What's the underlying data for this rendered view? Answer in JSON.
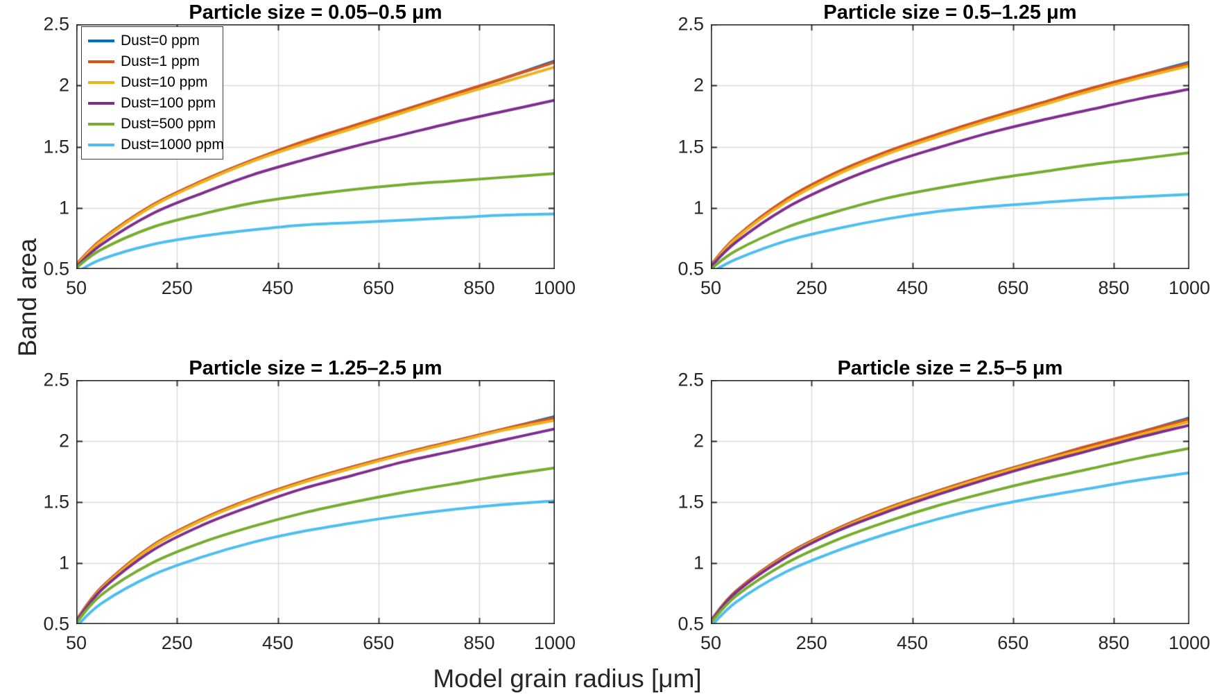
{
  "figure": {
    "background": "#ffffff",
    "axis_color": "#262626",
    "grid_color": "#dcdcdc"
  },
  "chart_data": {
    "type": "line",
    "xlabel": "Model grain radius [μm]",
    "ylabel": "Band area",
    "xlim": [
      50,
      1000
    ],
    "ylim": [
      0.5,
      2.5
    ],
    "x_ticks": [
      50,
      250,
      450,
      650,
      850,
      1000
    ],
    "x_tick_labels": [
      "50",
      "250",
      "450",
      "650",
      "850",
      "1000"
    ],
    "y_ticks": [
      0.5,
      1,
      1.5,
      2,
      2.5
    ],
    "y_tick_labels": [
      "0.5",
      "1",
      "1.5",
      "2",
      "2.5"
    ],
    "grid": true,
    "legend_position": "top-left of first subplot",
    "legend": [
      {
        "label": "Dust=0 ppm",
        "color": "#0072BD"
      },
      {
        "label": "Dust=1 ppm",
        "color": "#D95319"
      },
      {
        "label": "Dust=10 ppm",
        "color": "#EDB120"
      },
      {
        "label": "Dust=100 ppm",
        "color": "#7E2F8E"
      },
      {
        "label": "Dust=500 ppm",
        "color": "#77AC30"
      },
      {
        "label": "Dust=1000 ppm",
        "color": "#4DBEEE"
      }
    ],
    "x": [
      50,
      100,
      200,
      300,
      400,
      500,
      600,
      700,
      800,
      900,
      1000
    ],
    "subplots": [
      {
        "title": "Particle size = 0.05–0.5 μm",
        "series": [
          {
            "name": "Dust=0 ppm",
            "color": "#0072BD",
            "values": [
              0.53,
              0.74,
              1.02,
              1.22,
              1.39,
              1.54,
              1.67,
              1.8,
              1.93,
              2.06,
              2.2
            ]
          },
          {
            "name": "Dust=1 ppm",
            "color": "#D95319",
            "values": [
              0.54,
              0.74,
              1.02,
              1.22,
              1.39,
              1.54,
              1.67,
              1.8,
              1.93,
              2.06,
              2.19
            ]
          },
          {
            "name": "Dust=10 ppm",
            "color": "#EDB120",
            "values": [
              0.53,
              0.73,
              1.01,
              1.21,
              1.38,
              1.52,
              1.65,
              1.78,
              1.91,
              2.03,
              2.15
            ]
          },
          {
            "name": "Dust=100 ppm",
            "color": "#7E2F8E",
            "values": [
              0.52,
              0.7,
              0.95,
              1.12,
              1.27,
              1.39,
              1.5,
              1.6,
              1.7,
              1.79,
              1.88
            ]
          },
          {
            "name": "Dust=500 ppm",
            "color": "#77AC30",
            "values": [
              0.51,
              0.66,
              0.84,
              0.95,
              1.04,
              1.1,
              1.15,
              1.19,
              1.22,
              1.25,
              1.28
            ]
          },
          {
            "name": "Dust=1000 ppm",
            "color": "#4DBEEE",
            "values": [
              0.47,
              0.58,
              0.7,
              0.77,
              0.82,
              0.86,
              0.88,
              0.9,
              0.92,
              0.94,
              0.95
            ]
          }
        ]
      },
      {
        "title": "Particle size = 0.5–1.25 μm",
        "series": [
          {
            "name": "Dust=0 ppm",
            "color": "#0072BD",
            "values": [
              0.53,
              0.76,
              1.07,
              1.29,
              1.46,
              1.6,
              1.73,
              1.85,
              1.97,
              2.08,
              2.19
            ]
          },
          {
            "name": "Dust=1 ppm",
            "color": "#D95319",
            "values": [
              0.53,
              0.76,
              1.07,
              1.29,
              1.46,
              1.6,
              1.73,
              1.85,
              1.97,
              2.08,
              2.18
            ]
          },
          {
            "name": "Dust=10 ppm",
            "color": "#EDB120",
            "values": [
              0.52,
              0.75,
              1.05,
              1.27,
              1.44,
              1.58,
              1.71,
              1.83,
              1.95,
              2.06,
              2.16
            ]
          },
          {
            "name": "Dust=100 ppm",
            "color": "#7E2F8E",
            "values": [
              0.52,
              0.72,
              1.0,
              1.2,
              1.36,
              1.49,
              1.61,
              1.71,
              1.8,
              1.89,
              1.97
            ]
          },
          {
            "name": "Dust=500 ppm",
            "color": "#77AC30",
            "values": [
              0.5,
              0.65,
              0.84,
              0.97,
              1.08,
              1.16,
              1.23,
              1.29,
              1.35,
              1.4,
              1.45
            ]
          },
          {
            "name": "Dust=1000 ppm",
            "color": "#4DBEEE",
            "values": [
              0.47,
              0.58,
              0.73,
              0.83,
              0.91,
              0.97,
              1.01,
              1.04,
              1.07,
              1.09,
              1.11
            ]
          }
        ]
      },
      {
        "title": "Particle size = 1.25–2.5 μm",
        "series": [
          {
            "name": "Dust=0 ppm",
            "color": "#0072BD",
            "values": [
              0.53,
              0.8,
              1.14,
              1.36,
              1.53,
              1.67,
              1.79,
              1.9,
              2.0,
              2.1,
              2.2
            ]
          },
          {
            "name": "Dust=1 ppm",
            "color": "#D95319",
            "values": [
              0.53,
              0.8,
              1.14,
              1.36,
              1.53,
              1.67,
              1.79,
              1.9,
              2.0,
              2.1,
              2.19
            ]
          },
          {
            "name": "Dust=10 ppm",
            "color": "#EDB120",
            "values": [
              0.52,
              0.79,
              1.13,
              1.35,
              1.52,
              1.66,
              1.78,
              1.89,
              1.99,
              2.09,
              2.17
            ]
          },
          {
            "name": "Dust=100 ppm",
            "color": "#7E2F8E",
            "values": [
              0.52,
              0.78,
              1.1,
              1.31,
              1.47,
              1.61,
              1.72,
              1.83,
              1.92,
              2.01,
              2.1
            ]
          },
          {
            "name": "Dust=500 ppm",
            "color": "#77AC30",
            "values": [
              0.51,
              0.74,
              1.0,
              1.17,
              1.3,
              1.41,
              1.5,
              1.58,
              1.65,
              1.72,
              1.78
            ]
          },
          {
            "name": "Dust=1000 ppm",
            "color": "#4DBEEE",
            "values": [
              0.48,
              0.67,
              0.9,
              1.05,
              1.17,
              1.26,
              1.33,
              1.39,
              1.44,
              1.48,
              1.51
            ]
          }
        ]
      },
      {
        "title": "Particle size = 2.5–5 μm",
        "series": [
          {
            "name": "Dust=0 ppm",
            "color": "#0072BD",
            "values": [
              0.53,
              0.77,
              1.07,
              1.28,
              1.45,
              1.59,
              1.72,
              1.84,
              1.96,
              2.07,
              2.19
            ]
          },
          {
            "name": "Dust=1 ppm",
            "color": "#D95319",
            "values": [
              0.53,
              0.77,
              1.07,
              1.28,
              1.45,
              1.59,
              1.72,
              1.84,
              1.96,
              2.07,
              2.18
            ]
          },
          {
            "name": "Dust=10 ppm",
            "color": "#EDB120",
            "values": [
              0.52,
              0.76,
              1.06,
              1.27,
              1.44,
              1.58,
              1.71,
              1.83,
              1.94,
              2.05,
              2.16
            ]
          },
          {
            "name": "Dust=100 ppm",
            "color": "#7E2F8E",
            "values": [
              0.52,
              0.76,
              1.05,
              1.26,
              1.42,
              1.56,
              1.69,
              1.81,
              1.92,
              2.03,
              2.13
            ]
          },
          {
            "name": "Dust=500 ppm",
            "color": "#77AC30",
            "values": [
              0.51,
              0.73,
              1.0,
              1.19,
              1.34,
              1.47,
              1.58,
              1.68,
              1.77,
              1.86,
              1.94
            ]
          },
          {
            "name": "Dust=1000 ppm",
            "color": "#4DBEEE",
            "values": [
              0.48,
              0.68,
              0.93,
              1.1,
              1.24,
              1.36,
              1.46,
              1.54,
              1.61,
              1.68,
              1.74
            ]
          }
        ]
      }
    ]
  }
}
